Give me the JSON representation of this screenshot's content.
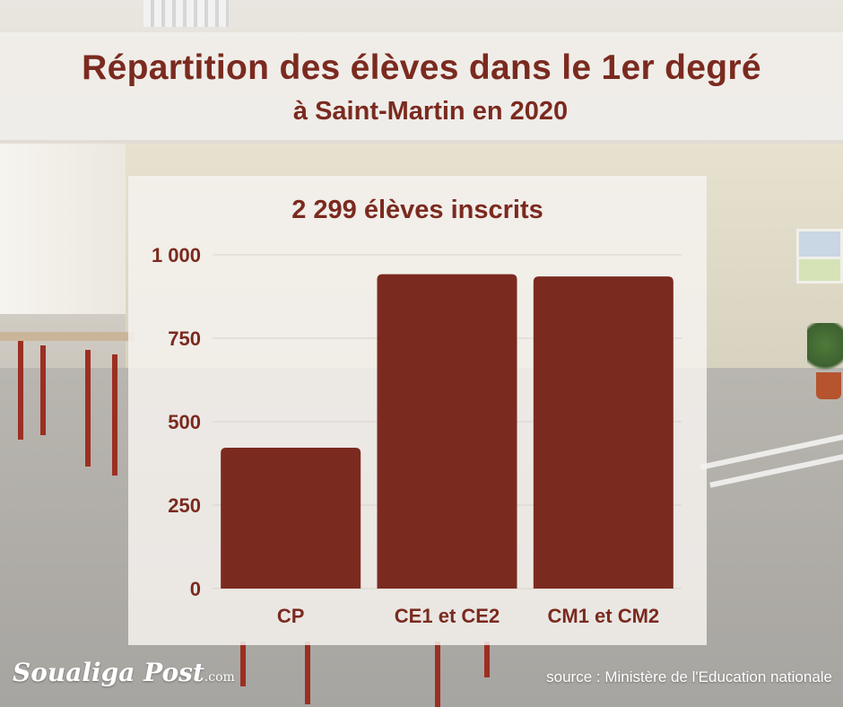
{
  "header": {
    "title": "Répartition des élèves dans le 1er degré",
    "subtitle": "à Saint-Martin en 2020"
  },
  "chart_data": {
    "type": "bar",
    "title": "2 299 élèves inscrits",
    "categories": [
      "CP",
      "CE1 et CE2",
      "CM1 et CM2"
    ],
    "values": [
      422,
      942,
      935
    ],
    "ylim": [
      0,
      1000
    ],
    "yticks": [
      0,
      250,
      500,
      750,
      1000
    ],
    "ytick_labels": [
      "0",
      "250",
      "500",
      "750",
      "1 000"
    ],
    "grid": true,
    "legend": "none",
    "bar_color": "#7b2a1f"
  },
  "footer": {
    "logo_text": "Soualiga Post",
    "logo_suffix": ".com",
    "source": "source : Ministère de l'Education nationale"
  }
}
